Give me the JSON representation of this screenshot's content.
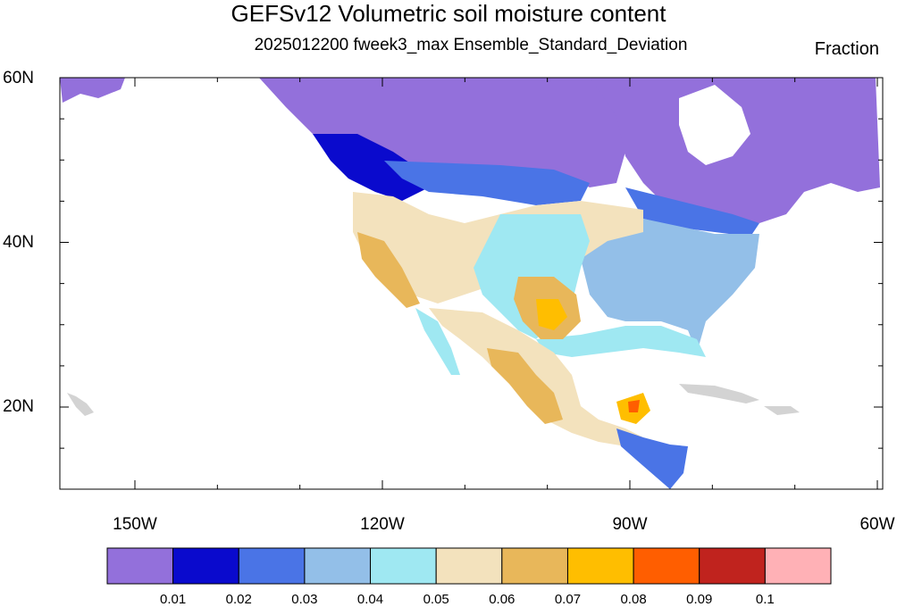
{
  "title": "GEFSv12 Volumetric soil moisture content",
  "subtitle": "2025012200 fweek3_max Ensemble_Standard_Deviation",
  "units": "Fraction",
  "lat_labels": [
    "60N",
    "40N",
    "20N"
  ],
  "lon_labels": [
    "150W",
    "120W",
    "90W",
    "60W"
  ],
  "colorbar": {
    "colors": [
      "#9370db",
      "#0a0acd",
      "#4a74e6",
      "#93bfe8",
      "#9fe8f2",
      "#f3e2bd",
      "#e8b75a",
      "#ffbe00",
      "#ff5e00",
      "#c0231e",
      "#ffb1b6"
    ],
    "labels": [
      "0.01",
      "0.02",
      "0.03",
      "0.04",
      "0.05",
      "0.06",
      "0.07",
      "0.08",
      "0.09",
      "0.1"
    ]
  },
  "land_no_data_color": "#d3d3d3"
}
